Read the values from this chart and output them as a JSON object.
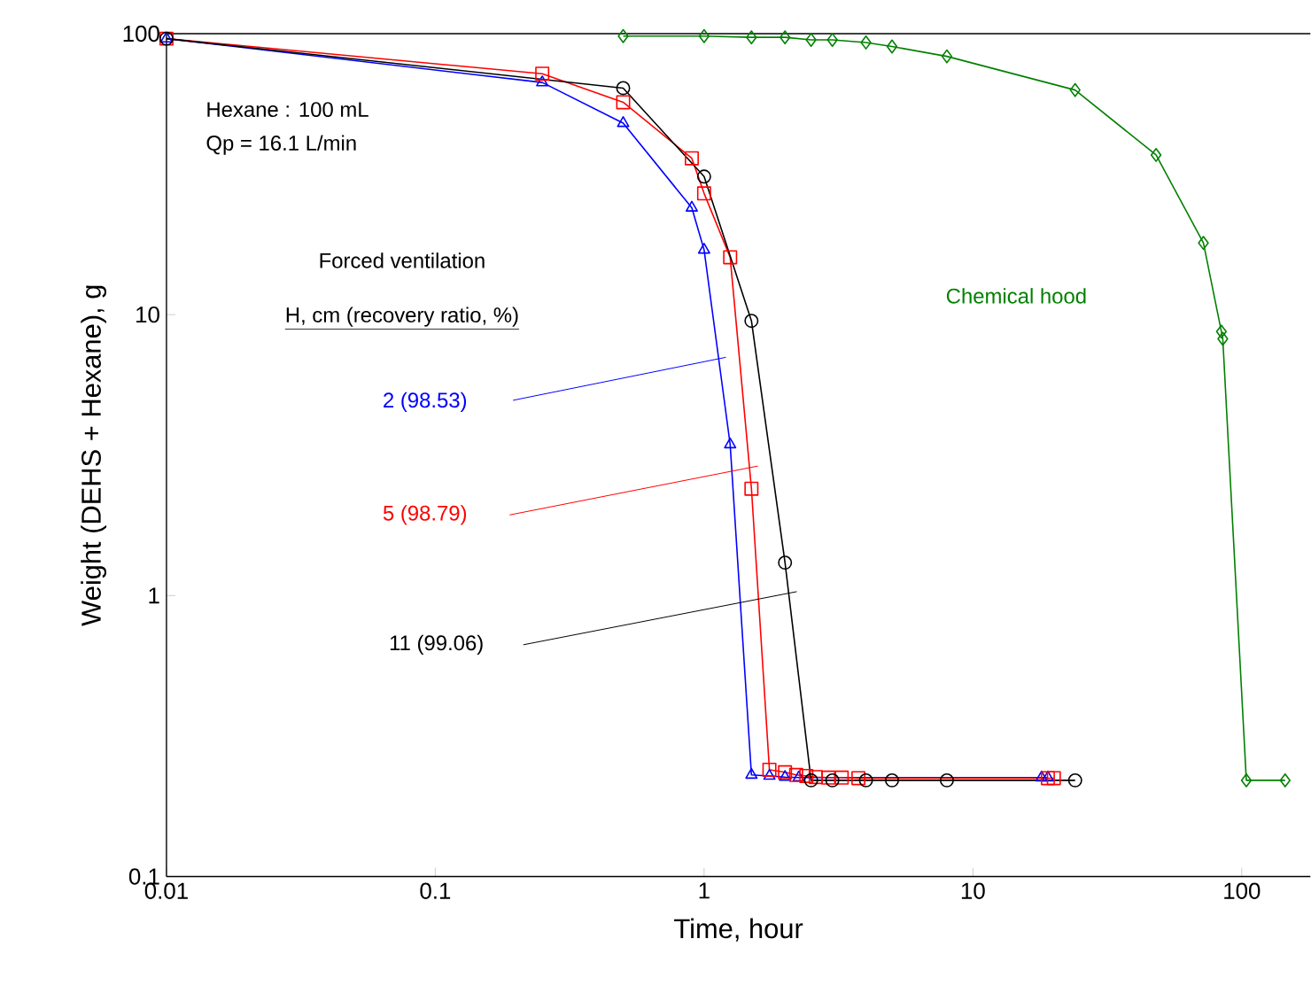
{
  "chart_data": {
    "type": "line",
    "xlabel": "Time, hour",
    "ylabel": "Weight (DEHS + Hexane), g",
    "log": "xy",
    "xlim": [
      0.01,
      180
    ],
    "ylim": [
      0.1,
      100
    ],
    "xticks": [
      0.01,
      0.1,
      1,
      10,
      100
    ],
    "yticks": [
      0.1,
      1,
      10,
      100
    ],
    "annotations": [
      "Hexane : 100 mL",
      "Qp = 16.1 L/min",
      "Forced ventilation",
      "H, cm (recovery ratio, %)"
    ],
    "series": [
      {
        "name": "2 (98.53)",
        "color": "#0000ff",
        "marker": "triangle",
        "x": [
          0.01,
          0.25,
          0.5,
          0.9,
          1,
          1.25,
          1.5,
          1.75,
          2,
          2.25,
          18,
          19
        ],
        "values": [
          96,
          67,
          48,
          24,
          17,
          3.45,
          0.23,
          0.228,
          0.226,
          0.225,
          0.225,
          0.225
        ]
      },
      {
        "name": "5 (98.79)",
        "color": "#ff0000",
        "marker": "square",
        "x": [
          0.01,
          0.25,
          0.5,
          0.9,
          1,
          1.25,
          1.5,
          1.75,
          2,
          2.2,
          2.4,
          2.6,
          2.9,
          3.25,
          3.75,
          19,
          20
        ],
        "values": [
          96,
          72,
          57,
          36,
          27,
          16,
          2.4,
          0.24,
          0.235,
          0.23,
          0.228,
          0.226,
          0.225,
          0.225,
          0.224,
          0.224,
          0.224
        ]
      },
      {
        "name": "11 (99.06)",
        "color": "#000000",
        "marker": "circle",
        "x": [
          0.01,
          0.5,
          1,
          1.5,
          2,
          2.5,
          3,
          4,
          5,
          8,
          24
        ],
        "values": [
          96,
          64,
          31,
          9.5,
          1.31,
          0.22,
          0.22,
          0.22,
          0.22,
          0.22,
          0.22
        ]
      },
      {
        "name": "Chemical hood",
        "color": "#008000",
        "marker": "diamond",
        "x": [
          0.5,
          1,
          1.5,
          2,
          2.5,
          3,
          4,
          5,
          8,
          24,
          48,
          72,
          84,
          85,
          104,
          145
        ],
        "values": [
          98,
          98,
          97,
          97,
          95,
          95,
          93,
          90,
          83,
          63,
          37,
          18,
          8.7,
          8.2,
          0.22,
          0.22
        ]
      }
    ]
  }
}
